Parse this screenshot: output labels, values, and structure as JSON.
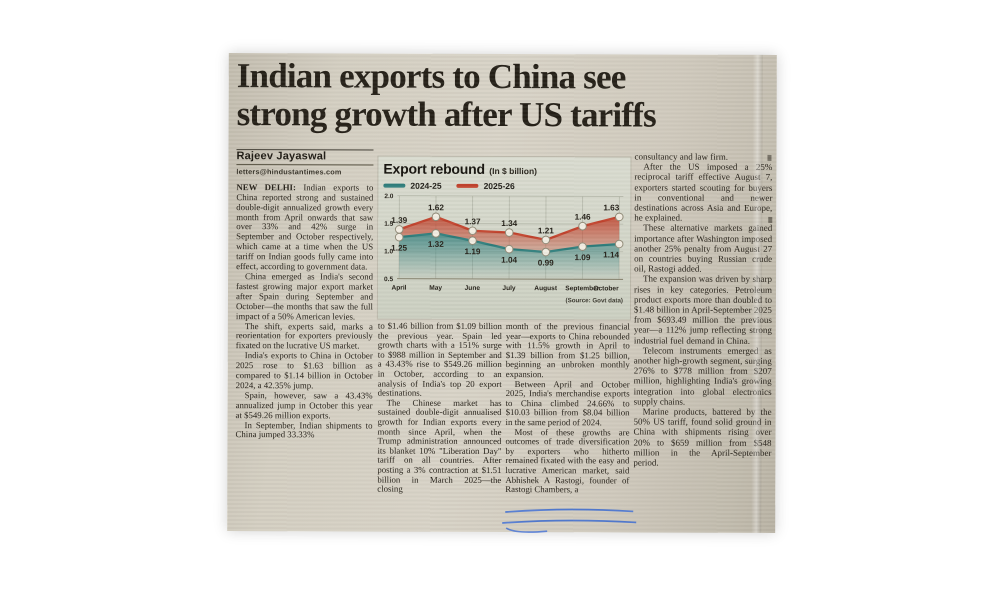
{
  "headline": {
    "line1": "Indian exports to China see",
    "line2": "strong growth after US tariffs"
  },
  "byline": {
    "author": "Rajeev Jayaswal",
    "email": "letters@hindustantimes.com"
  },
  "article": {
    "dateline": "NEW DELHI:",
    "col1": {
      "p1": "Indian exports to China reported strong and sustained double-digit annualized growth every month from April onwards that saw over 33% and 42% surge in September and October respectively, which came at a time when the US tariff on Indian goods fully came into effect, according to government data.",
      "p2": "China emerged as India's second fastest growing major export market after Spain during September and October—the months that saw the full impact of a 50% American levies.",
      "p3": "The shift, experts said, marks a reorientation for exporters previously fixated on the lucrative US market.",
      "p4": "India's exports to China in October 2025 rose to $1.63 billion as compared to $1.14 billion in October 2024, a 42.35% jump.",
      "p5": "Spain, however, saw a 43.43% annualized jump in October this year at $549.26 million exports.",
      "p6": "In September, Indian shipments to China jumped 33.33%"
    },
    "col2": {
      "p1": "to $1.46 billion from $1.09 billion the previous year. Spain led growth charts with a 151% surge to $988 million in September and a 43.43% rise to $549.26 million in October, according to an analysis of India's top 20 export destinations.",
      "p2": "The Chinese market has sustained double-digit annualised growth for Indian exports every month since April, when the Trump administration announced its blanket 10% \"Liberation Day\" tariff on all countries. After posting a 3% contraction at $1.51 billion in March 2025—the closing"
    },
    "col3": {
      "p1": "month of the previous financial year—exports to China rebounded with 11.5% growth in April to $1.39 billion from $1.25 billion, beginning an unbroken monthly expansion.",
      "p2": "Between April and October 2025, India's merchandise exports to China climbed 24.66% to $10.03 billion from $8.04 billion in the same period of 2024.",
      "p3": "Most of these growths are outcomes of trade diversification by exporters who hitherto remained fixated with the easy and lucrative American market, said Abhishek A Rastogi, founder of Rastogi Chambers, a"
    },
    "col4": {
      "p1": "consultancy and law firm.",
      "p2": "After the US imposed a 25% reciprocal tariff effective August 7, exporters started scouting for buyers in conventional and newer destinations across Asia and Europe, he explained.",
      "p3": "These alternative markets gained importance after Washington imposed another 25% penalty from August 27 on countries buying Russian crude oil, Rastogi added.",
      "p4": "The expansion was driven by sharp rises in key categories. Petroleum product exports more than doubled to $1.48 billion in April-September 2025 from $693.49 million the previous year—a 112% jump reflecting strong industrial fuel demand in China.",
      "p5": "Telecom instruments emerged as another high-growth segment, surging 276% to $778 million from $207 million, highlighting India's growing integration into global electronics supply chains.",
      "p6": "Marine products, battered by the 50% US tariff, found solid ground in China with shipments rising over 20% to $659 million from $548 million in the April-September period."
    }
  },
  "chart_data": {
    "type": "line",
    "title": "Export rebound",
    "subtitle": "(In $ billion)",
    "categories": [
      "April",
      "May",
      "June",
      "July",
      "August",
      "September",
      "October"
    ],
    "series": [
      {
        "name": "2024-25",
        "color": "#2f7e7c",
        "values": [
          1.25,
          1.32,
          1.19,
          1.04,
          0.99,
          1.09,
          1.14
        ]
      },
      {
        "name": "2025-26",
        "color": "#c2442e",
        "values": [
          1.39,
          1.62,
          1.37,
          1.34,
          1.21,
          1.46,
          1.63
        ]
      }
    ],
    "ylim": [
      0.5,
      2.0
    ],
    "yticks": [
      2.0,
      1.5,
      1.0,
      0.5
    ],
    "grid": true,
    "legend_position": "top",
    "source": "(Source: Govt data)"
  },
  "ink_color": "#3c6cd4"
}
